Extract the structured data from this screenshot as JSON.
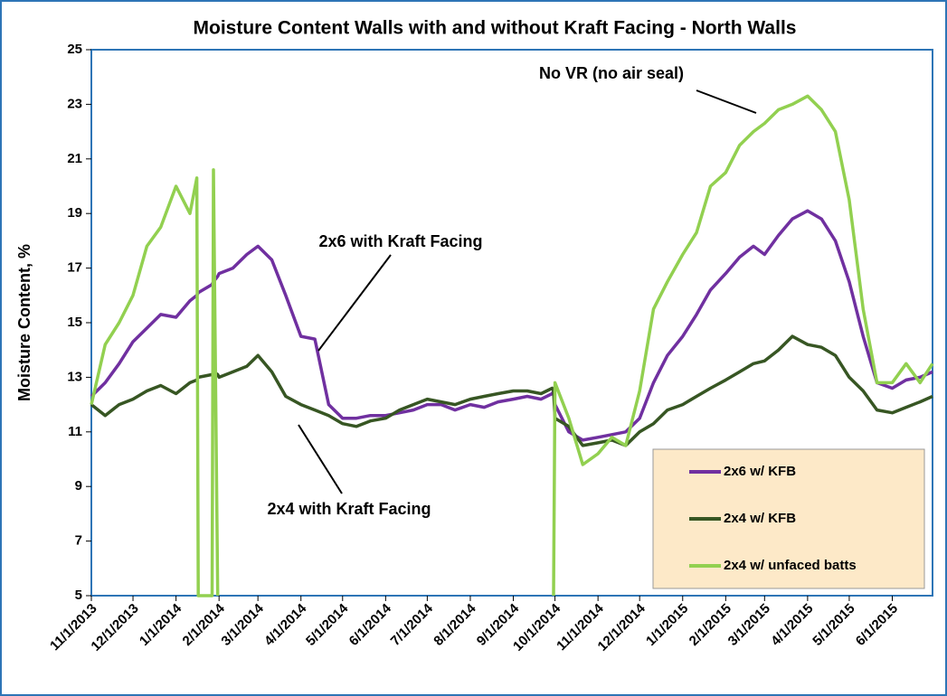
{
  "chart_data": {
    "type": "line",
    "title": "Moisture Content Walls with and without Kraft Facing - North Walls",
    "ylabel": "Moisture Content, %",
    "annotations": [
      "No VR (no air seal)",
      "2x6 with Kraft Facing",
      "2x4 with Kraft Facing"
    ],
    "x": [
      "11/1/2013",
      "11/11/2013",
      "11/21/2013",
      "12/1/2013",
      "12/11/2013",
      "12/21/2013",
      "1/1/2014",
      "1/11/2014",
      "1/16/2014",
      "1/17/2014",
      "1/27/2014",
      "1/28/2014",
      "1/31/2014",
      "2/1/2014",
      "2/11/2014",
      "2/21/2014",
      "3/1/2014",
      "3/11/2014",
      "3/21/2014",
      "4/1/2014",
      "4/11/2014",
      "4/21/2014",
      "5/1/2014",
      "5/11/2014",
      "5/21/2014",
      "6/1/2014",
      "6/11/2014",
      "6/21/2014",
      "7/1/2014",
      "7/11/2014",
      "7/21/2014",
      "8/1/2014",
      "8/11/2014",
      "8/21/2014",
      "9/1/2014",
      "9/11/2014",
      "9/21/2014",
      "9/29/2014",
      "9/30/2014",
      "10/1/2014",
      "10/11/2014",
      "10/21/2014",
      "11/1/2014",
      "11/11/2014",
      "11/21/2014",
      "12/1/2014",
      "12/11/2014",
      "12/21/2014",
      "1/1/2015",
      "1/11/2015",
      "1/21/2015",
      "2/1/2015",
      "2/11/2015",
      "2/21/2015",
      "3/1/2015",
      "3/11/2015",
      "3/21/2015",
      "4/1/2015",
      "4/11/2015",
      "4/21/2015",
      "5/1/2015",
      "5/11/2015",
      "5/21/2015",
      "6/1/2015",
      "6/11/2015",
      "6/21/2015",
      "6/30/2015"
    ],
    "series": [
      {
        "name": "2x6 w/ KFB",
        "color": "#7030a0",
        "values": [
          12.3,
          12.8,
          13.5,
          14.3,
          14.8,
          15.3,
          15.2,
          15.8,
          16.0,
          16.1,
          16.4,
          16.5,
          16.7,
          16.8,
          17.0,
          17.5,
          17.8,
          17.3,
          16.0,
          14.5,
          14.4,
          12.0,
          11.5,
          11.5,
          11.6,
          11.6,
          11.7,
          11.8,
          12.0,
          12.0,
          11.8,
          12.0,
          11.9,
          12.1,
          12.2,
          12.3,
          12.2,
          12.4,
          12.5,
          12.0,
          11.0,
          10.7,
          10.8,
          10.9,
          11.0,
          11.5,
          12.8,
          13.8,
          14.5,
          15.3,
          16.2,
          16.8,
          17.4,
          17.8,
          17.5,
          18.2,
          18.8,
          19.1,
          18.8,
          18.0,
          16.5,
          14.5,
          12.8,
          12.6,
          12.9,
          13.0,
          13.2
        ]
      },
      {
        "name": "2x4 w/ KFB",
        "color": "#375623",
        "values": [
          12.0,
          11.6,
          12.0,
          12.2,
          12.5,
          12.7,
          12.4,
          12.8,
          12.9,
          13.0,
          13.1,
          13.2,
          13.1,
          13.0,
          13.2,
          13.4,
          13.8,
          13.2,
          12.3,
          12.0,
          11.8,
          11.6,
          11.3,
          11.2,
          11.4,
          11.5,
          11.8,
          12.0,
          12.2,
          12.1,
          12.0,
          12.2,
          12.3,
          12.4,
          12.5,
          12.5,
          12.4,
          12.6,
          12.5,
          11.5,
          11.2,
          10.5,
          10.6,
          10.7,
          10.5,
          11.0,
          11.3,
          11.8,
          12.0,
          12.3,
          12.6,
          12.9,
          13.2,
          13.5,
          13.6,
          14.0,
          14.5,
          14.2,
          14.1,
          13.8,
          13.0,
          12.5,
          11.8,
          11.7,
          11.9,
          12.1,
          12.3
        ]
      },
      {
        "name": "2x4 w/ unfaced batts",
        "color": "#92d050",
        "values": [
          12.0,
          14.2,
          15.0,
          16.0,
          17.8,
          18.5,
          20.0,
          19.0,
          20.3,
          5,
          5,
          20.6,
          5,
          null,
          null,
          null,
          null,
          null,
          null,
          null,
          null,
          null,
          null,
          null,
          null,
          null,
          null,
          null,
          null,
          null,
          null,
          null,
          null,
          null,
          null,
          null,
          null,
          null,
          5,
          12.8,
          11.5,
          9.8,
          10.2,
          10.8,
          10.5,
          12.5,
          15.5,
          16.5,
          17.5,
          18.3,
          20.0,
          20.5,
          21.5,
          22.0,
          22.3,
          22.8,
          23.0,
          23.3,
          22.8,
          22.0,
          19.5,
          15.5,
          12.8,
          12.8,
          13.5,
          12.8,
          13.5
        ]
      }
    ],
    "xlim": [
      "11/1/2013",
      "6/30/2015"
    ],
    "xticks": [
      "11/1/2013",
      "12/1/2013",
      "1/1/2014",
      "2/1/2014",
      "3/1/2014",
      "4/1/2014",
      "5/1/2014",
      "6/1/2014",
      "7/1/2014",
      "8/1/2014",
      "9/1/2014",
      "10/1/2014",
      "11/1/2014",
      "12/1/2014",
      "1/1/2015",
      "2/1/2015",
      "3/1/2015",
      "4/1/2015",
      "5/1/2015",
      "6/1/2015"
    ],
    "ylim": [
      5,
      25
    ],
    "yticks": [
      5,
      7,
      9,
      11,
      13,
      15,
      17,
      19,
      21,
      23,
      25
    ],
    "grid": false
  }
}
